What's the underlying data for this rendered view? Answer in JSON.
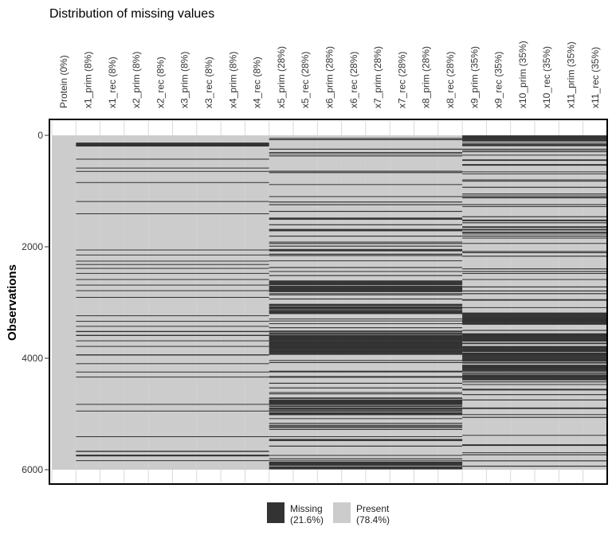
{
  "chart_data": {
    "type": "heatmap",
    "title": "Distribution of missing values",
    "xlabel": "",
    "ylabel": "Observations",
    "n_observations": 6000,
    "ylim": [
      0,
      6000
    ],
    "y_ticks": [
      0,
      2000,
      4000,
      6000
    ],
    "columns": [
      {
        "label": "Protein (0%)",
        "missing_pct": 0
      },
      {
        "label": "x1_prim (8%)",
        "missing_pct": 8
      },
      {
        "label": "x1_rec (8%)",
        "missing_pct": 8
      },
      {
        "label": "x2_prim (8%)",
        "missing_pct": 8
      },
      {
        "label": "x2_rec (8%)",
        "missing_pct": 8
      },
      {
        "label": "x3_prim (8%)",
        "missing_pct": 8
      },
      {
        "label": "x3_rec (8%)",
        "missing_pct": 8
      },
      {
        "label": "x4_prim (8%)",
        "missing_pct": 8
      },
      {
        "label": "x4_rec (8%)",
        "missing_pct": 8
      },
      {
        "label": "x5_prim (28%)",
        "missing_pct": 28
      },
      {
        "label": "x5_rec (28%)",
        "missing_pct": 28
      },
      {
        "label": "x6_prim (28%)",
        "missing_pct": 28
      },
      {
        "label": "x6_rec (28%)",
        "missing_pct": 28
      },
      {
        "label": "x7_prim (28%)",
        "missing_pct": 28
      },
      {
        "label": "x7_rec (28%)",
        "missing_pct": 28
      },
      {
        "label": "x8_prim (28%)",
        "missing_pct": 28
      },
      {
        "label": "x8_rec (28%)",
        "missing_pct": 28
      },
      {
        "label": "x9_prim (35%)",
        "missing_pct": 35
      },
      {
        "label": "x9_rec (35%)",
        "missing_pct": 35
      },
      {
        "label": "x10_prim (35%)",
        "missing_pct": 35
      },
      {
        "label": "x10_rec (35%)",
        "missing_pct": 35
      },
      {
        "label": "x11_prim (35%)",
        "missing_pct": 35
      },
      {
        "label": "x11_rec (35%)",
        "missing_pct": 35
      }
    ],
    "legend": [
      {
        "name": "Missing",
        "pct": "(21.6%)",
        "color": "#333333"
      },
      {
        "name": "Present",
        "pct": "(78.4%)",
        "color": "#cccccc"
      }
    ],
    "legend_position": "bottom",
    "colors": {
      "missing": "#333333",
      "present": "#cccccc"
    },
    "missing_bands": [
      {
        "group": "x1-x4",
        "columns": [
          1,
          8
        ],
        "rows": [
          [
            130,
            200
          ],
          [
            420,
            435
          ],
          [
            580,
            590
          ],
          [
            640,
            650
          ],
          [
            840,
            850
          ],
          [
            1180,
            1190
          ],
          [
            1400,
            1410
          ],
          [
            2050,
            2060
          ],
          [
            2140,
            2150
          ],
          [
            2250,
            2260
          ],
          [
            2310,
            2320
          ],
          [
            2380,
            2390
          ],
          [
            2470,
            2480
          ],
          [
            2580,
            2590
          ],
          [
            2680,
            2690
          ],
          [
            2780,
            2790
          ],
          [
            2900,
            2910
          ],
          [
            3230,
            3240
          ],
          [
            3330,
            3340
          ],
          [
            3420,
            3430
          ],
          [
            3510,
            3530
          ],
          [
            3580,
            3600
          ],
          [
            3680,
            3690
          ],
          [
            3780,
            3790
          ],
          [
            3930,
            3950
          ],
          [
            4090,
            4100
          ],
          [
            4240,
            4250
          ],
          [
            4330,
            4340
          ],
          [
            4820,
            4830
          ],
          [
            4940,
            4950
          ],
          [
            5400,
            5410
          ],
          [
            5660,
            5680
          ],
          [
            5730,
            5760
          ],
          [
            5830,
            5840
          ]
        ]
      },
      {
        "group": "x5-x8",
        "columns": [
          9,
          16
        ],
        "density": 0.28,
        "seed": 7,
        "dense_ranges": [
          [
            2600,
            2800
          ],
          [
            3000,
            3200
          ],
          [
            3500,
            3900
          ],
          [
            4700,
            5000
          ],
          [
            5850,
            6000
          ]
        ]
      },
      {
        "group": "x9-x11",
        "columns": [
          17,
          22
        ],
        "density": 0.35,
        "seed": 11,
        "dense_ranges": [
          [
            0,
            100
          ],
          [
            3200,
            3400
          ],
          [
            3550,
            4400
          ]
        ]
      }
    ]
  }
}
